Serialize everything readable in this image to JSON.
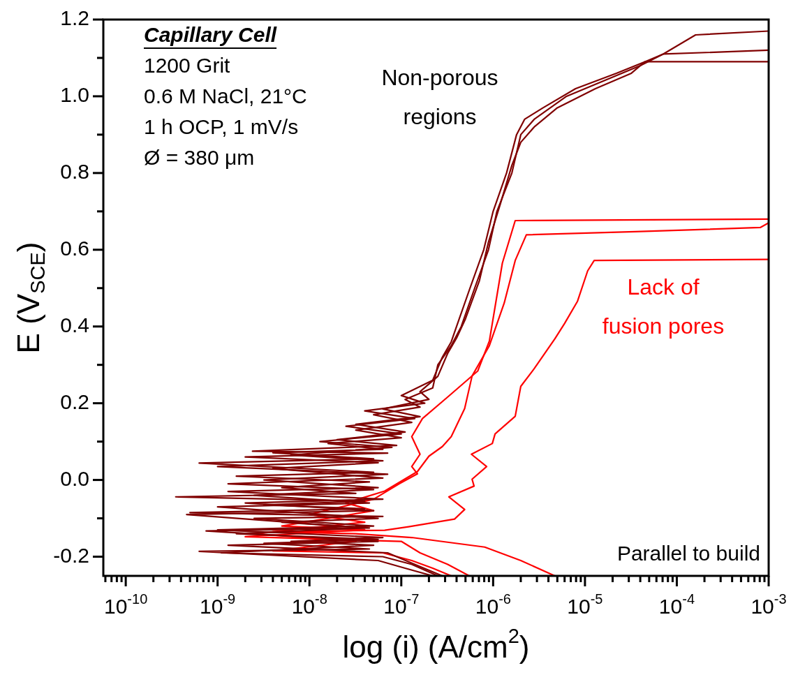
{
  "chart_data": {
    "type": "line",
    "xlabel": "log (i) (A/cm$^{2}$)",
    "ylabel": "E (V$_{SCE}$)",
    "log": "x",
    "xlim": [
      5.7e-11,
      0.001
    ],
    "ylim": [
      -0.25,
      1.2
    ],
    "xticks": [
      {
        "value": 6e-11,
        "label": null
      },
      {
        "value": 7e-11,
        "label": null
      },
      {
        "value": 8e-11,
        "label": null
      },
      {
        "value": 9e-11,
        "label": null
      },
      {
        "value": 1e-10,
        "label": "10$^{-10}$"
      },
      {
        "value": 2e-10,
        "label": null
      },
      {
        "value": 3e-10,
        "label": null
      },
      {
        "value": 4e-10,
        "label": null
      },
      {
        "value": 5e-10,
        "label": null
      },
      {
        "value": 6e-10,
        "label": null
      },
      {
        "value": 7e-10,
        "label": null
      },
      {
        "value": 8e-10,
        "label": null
      },
      {
        "value": 9e-10,
        "label": null
      },
      {
        "value": 1e-09,
        "label": "10$^{-9}$"
      },
      {
        "value": 2e-09,
        "label": null
      },
      {
        "value": 3e-09,
        "label": null
      },
      {
        "value": 4e-09,
        "label": null
      },
      {
        "value": 5e-09,
        "label": null
      },
      {
        "value": 6e-09,
        "label": null
      },
      {
        "value": 7e-09,
        "label": null
      },
      {
        "value": 8e-09,
        "label": null
      },
      {
        "value": 9e-09,
        "label": null
      },
      {
        "value": 1e-08,
        "label": "10$^{-8}$"
      },
      {
        "value": 2e-08,
        "label": null
      },
      {
        "value": 3e-08,
        "label": null
      },
      {
        "value": 4e-08,
        "label": null
      },
      {
        "value": 5e-08,
        "label": null
      },
      {
        "value": 6e-08,
        "label": null
      },
      {
        "value": 7e-08,
        "label": null
      },
      {
        "value": 8e-08,
        "label": null
      },
      {
        "value": 9e-08,
        "label": null
      },
      {
        "value": 1e-07,
        "label": "10$^{-7}$"
      },
      {
        "value": 2e-07,
        "label": null
      },
      {
        "value": 3e-07,
        "label": null
      },
      {
        "value": 4e-07,
        "label": null
      },
      {
        "value": 5e-07,
        "label": null
      },
      {
        "value": 6e-07,
        "label": null
      },
      {
        "value": 7e-07,
        "label": null
      },
      {
        "value": 8e-07,
        "label": null
      },
      {
        "value": 9e-07,
        "label": null
      },
      {
        "value": 1e-06,
        "label": "10$^{-6}$"
      },
      {
        "value": 2e-06,
        "label": null
      },
      {
        "value": 3e-06,
        "label": null
      },
      {
        "value": 4e-06,
        "label": null
      },
      {
        "value": 5e-06,
        "label": null
      },
      {
        "value": 6e-06,
        "label": null
      },
      {
        "value": 7e-06,
        "label": null
      },
      {
        "value": 8e-06,
        "label": null
      },
      {
        "value": 9e-06,
        "label": null
      },
      {
        "value": 1e-05,
        "label": "10$^{-5}$"
      },
      {
        "value": 2e-05,
        "label": null
      },
      {
        "value": 3e-05,
        "label": null
      },
      {
        "value": 4e-05,
        "label": null
      },
      {
        "value": 5e-05,
        "label": null
      },
      {
        "value": 6e-05,
        "label": null
      },
      {
        "value": 7e-05,
        "label": null
      },
      {
        "value": 8e-05,
        "label": null
      },
      {
        "value": 9e-05,
        "label": null
      },
      {
        "value": 0.0001,
        "label": "10$^{-4}$"
      },
      {
        "value": 0.0002,
        "label": null
      },
      {
        "value": 0.0003,
        "label": null
      },
      {
        "value": 0.0004,
        "label": null
      },
      {
        "value": 0.0005,
        "label": null
      },
      {
        "value": 0.0006,
        "label": null
      },
      {
        "value": 0.0007,
        "label": null
      },
      {
        "value": 0.0008,
        "label": null
      },
      {
        "value": 0.0009,
        "label": null
      },
      {
        "value": 0.001,
        "label": "10$^{-3}$"
      }
    ],
    "yticks": [
      -0.2,
      {
        "value": -0.1,
        "label": null
      },
      {
        "value": 0,
        "label": "0.0"
      },
      {
        "value": 0.1,
        "label": null
      },
      0.2,
      {
        "value": 0.3,
        "label": null
      },
      0.4,
      {
        "value": 0.5,
        "label": null
      },
      0.6,
      {
        "value": 0.7,
        "label": null
      },
      0.8,
      {
        "value": 0.9,
        "label": null
      },
      {
        "value": 1,
        "label": "1.0"
      },
      {
        "value": 1.1,
        "label": null
      },
      1.2
    ],
    "series": [
      {
        "color": "#800000",
        "x": [
          2.5e-07,
          1.3e-07,
          6.3e-08,
          1.1e-09,
          5e-08,
          6.3e-09,
          6.3e-08,
          1e-09,
          5e-08,
          2.5e-09,
          6.3e-08,
          5e-10,
          4e-08,
          3.2e-09,
          4e-08,
          3.5e-10,
          3.2e-08,
          5e-09,
          4.5e-08,
          1.6e-09,
          5e-08,
          6.3e-10,
          5e-08,
          4e-09,
          6.3e-08,
          1.6e-08,
          1e-07,
          3.2e-08,
          1.3e-07,
          5e-08,
          1.6e-07,
          1.1e-07,
          2.2e-07,
          2.5e-07,
          3.5e-07,
          4.5e-07,
          6.3e-07,
          8.9e-07,
          1.1e-06,
          1.6e-06,
          2e-06,
          2.8e-06,
          6.3e-06,
          2e-05,
          4e-05,
          7.1e-05,
          0.00016,
          0.001
        ],
        "values": [
          -0.25,
          -0.22,
          -0.2,
          -0.19,
          -0.17,
          -0.16,
          -0.15,
          -0.13,
          -0.12,
          -0.1,
          -0.095,
          -0.085,
          -0.075,
          -0.065,
          -0.055,
          -0.044,
          -0.035,
          -0.02,
          -0.005,
          0.01,
          0.02,
          0.044,
          0.055,
          0.071,
          0.08,
          0.095,
          0.11,
          0.13,
          0.15,
          0.17,
          0.19,
          0.21,
          0.24,
          0.3,
          0.35,
          0.4,
          0.5,
          0.6,
          0.7,
          0.8,
          0.9,
          0.94,
          1.0,
          1.05,
          1.08,
          1.11,
          1.16,
          1.17
        ]
      },
      {
        "color": "#800000",
        "x": [
          2.2e-07,
          1.1e-07,
          5.6e-08,
          6.3e-10,
          4.5e-08,
          3.2e-09,
          5.6e-08,
          1.6e-09,
          4e-08,
          4.6e-10,
          5e-08,
          2e-09,
          6.3e-08,
          1.3e-09,
          5.6e-08,
          3.2e-09,
          7.1e-08,
          1e-09,
          6.3e-08,
          6.3e-09,
          7.9e-08,
          1.3e-08,
          1e-07,
          2.5e-08,
          1.4e-07,
          4e-08,
          1.8e-07,
          1e-07,
          2.2e-07,
          2.8e-07,
          3.5e-07,
          4e-07,
          5.6e-07,
          7.9e-07,
          1e-06,
          1.4e-06,
          1.8e-06,
          2.2e-06,
          3.5e-06,
          7.9e-06,
          2.2e-05,
          4.5e-05,
          7.1e-05,
          0.001
        ],
        "values": [
          -0.25,
          -0.23,
          -0.21,
          -0.186,
          -0.18,
          -0.165,
          -0.155,
          -0.14,
          -0.125,
          -0.09,
          -0.08,
          -0.06,
          -0.05,
          -0.03,
          -0.02,
          0.0,
          0.015,
          0.035,
          0.05,
          0.065,
          0.085,
          0.1,
          0.12,
          0.14,
          0.16,
          0.18,
          0.2,
          0.22,
          0.26,
          0.32,
          0.36,
          0.4,
          0.5,
          0.6,
          0.7,
          0.8,
          0.9,
          0.94,
          0.97,
          1.02,
          1.06,
          1.09,
          1.11,
          1.12
        ]
      },
      {
        "color": "#800000",
        "x": [
          2.8e-07,
          1.4e-07,
          7.1e-08,
          1.3e-09,
          5.6e-08,
          7.5e-10,
          4.5e-08,
          5e-09,
          5.6e-08,
          1e-09,
          4.5e-08,
          2.5e-09,
          5e-08,
          1.3e-09,
          6.3e-08,
          4e-09,
          5.6e-08,
          2e-09,
          7.1e-08,
          2.4e-09,
          8.9e-08,
          2e-08,
          1.1e-07,
          3.2e-08,
          1.6e-07,
          6.3e-08,
          2e-07,
          1.6e-07,
          2.5e-07,
          3.2e-07,
          4e-07,
          5e-07,
          7.1e-07,
          8.9e-07,
          1.2e-06,
          1.6e-06,
          2e-06,
          2.8e-06,
          5e-06,
          1.3e-05,
          3.2e-05,
          4.5e-05,
          0.001
        ],
        "values": [
          -0.25,
          -0.22,
          -0.19,
          -0.17,
          -0.16,
          -0.133,
          -0.125,
          -0.11,
          -0.1,
          -0.07,
          -0.06,
          -0.04,
          -0.025,
          -0.01,
          0.005,
          0.03,
          0.045,
          0.06,
          0.07,
          0.075,
          0.09,
          0.105,
          0.125,
          0.145,
          0.165,
          0.185,
          0.21,
          0.23,
          0.27,
          0.33,
          0.37,
          0.42,
          0.52,
          0.62,
          0.72,
          0.82,
          0.88,
          0.92,
          0.97,
          1.02,
          1.06,
          1.09,
          1.09
        ]
      },
      {
        "color": "#ff0000",
        "x": [
          3.5e-07,
          2.2e-07,
          1.3e-07,
          6.3e-08,
          4e-09,
          3.2e-08,
          2.5e-09,
          4e-08,
          1e-08,
          5e-08,
          9.5e-08,
          1.5e-07,
          1.3e-07,
          1.6e-07,
          1.3e-07,
          1.7e-07,
          3.3e-07,
          6.8e-07,
          9.1e-07,
          1.26e-06,
          1.74e-06,
          0.001
        ],
        "values": [
          -0.25,
          -0.23,
          -0.21,
          -0.19,
          -0.185,
          -0.16,
          -0.14,
          -0.11,
          -0.09,
          -0.05,
          -0.01,
          0.016,
          0.035,
          0.067,
          0.113,
          0.16,
          0.219,
          0.284,
          0.362,
          0.565,
          0.676,
          0.68
        ]
      },
      {
        "color": "#ff0000",
        "x": [
          5.5e-07,
          3.2e-07,
          1.6e-07,
          1e-07,
          2e-09,
          4e-08,
          5e-09,
          5e-08,
          2.5e-08,
          6.6e-08,
          1.5e-07,
          2e-07,
          2.8e-07,
          3.5e-07,
          4.9e-07,
          5.9e-07,
          9.1e-07,
          1.32e-06,
          1.74e-06,
          2.3e-06,
          3.5e-05,
          0.00081,
          0.001
        ],
        "values": [
          -0.25,
          -0.22,
          -0.19,
          -0.16,
          -0.148,
          -0.13,
          -0.12,
          -0.08,
          -0.06,
          -0.029,
          0.022,
          0.062,
          0.087,
          0.113,
          0.186,
          0.271,
          0.35,
          0.461,
          0.572,
          0.639,
          0.647,
          0.658,
          0.67
        ]
      },
      {
        "color": "#ff0000",
        "x": [
          4.7e-06,
          2e-06,
          8.1e-07,
          1.3e-07,
          3.2e-08,
          4e-09,
          6.6e-08,
          1.2e-07,
          3.8e-07,
          4.9e-07,
          3.3e-07,
          6.2e-07,
          5.9e-07,
          8.5e-07,
          5.8e-07,
          9.8e-07,
          1.05e-06,
          1.74e-06,
          2e-06,
          2.8e-06,
          4.7e-06,
          6e-06,
          8.3e-06,
          1.07e-05,
          1.26e-05,
          0.001
        ],
        "values": [
          -0.25,
          -0.21,
          -0.175,
          -0.15,
          -0.14,
          -0.135,
          -0.131,
          -0.122,
          -0.102,
          -0.077,
          -0.044,
          -0.016,
          0.002,
          0.035,
          0.067,
          0.095,
          0.12,
          0.166,
          0.244,
          0.29,
          0.368,
          0.408,
          0.466,
          0.545,
          0.572,
          0.575
        ]
      }
    ],
    "annotations": [
      "Capillary Cell",
      "1200 Grit",
      "0.6 M NaCl, 21°C",
      "1 h OCP, 1 mV/s",
      "Ø = 380 μm",
      "Non-porous regions",
      "Lack of fusion pores",
      "Parallel to build"
    ]
  }
}
